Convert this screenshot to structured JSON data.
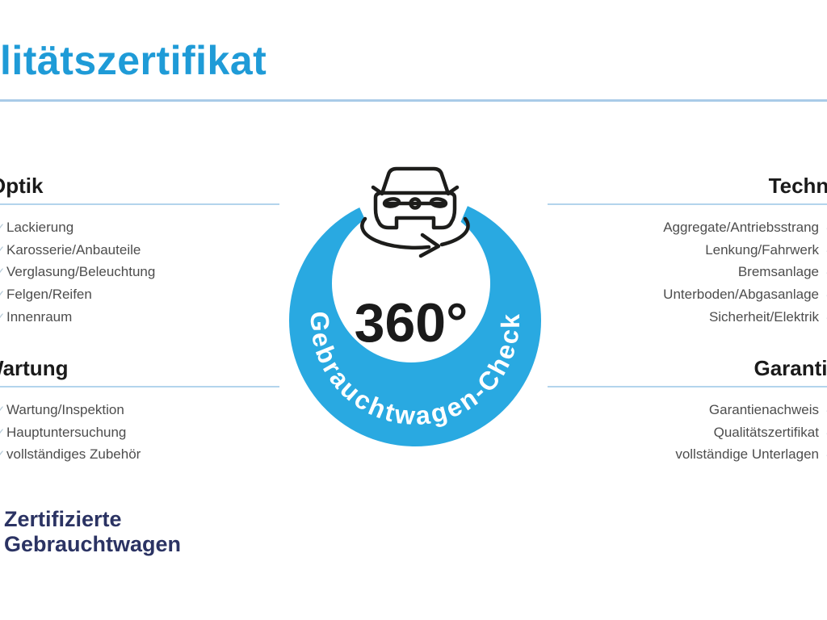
{
  "title": {
    "text": "litätszertifikat"
  },
  "badge": {
    "degrees_label": "360°",
    "ring_label": "Gebrauchtwagen-Check"
  },
  "sections": [
    {
      "heading": "Optik",
      "items": [
        "Lackierung",
        "Karosserie/Anbauteile",
        "Verglasung/Beleuchtung",
        "Felgen/Reifen",
        "Innenraum"
      ]
    },
    {
      "heading": "Technik",
      "items": [
        "Aggregate/Antriebsstrang",
        "Lenkung/Fahrwerk",
        "Bremsanlage",
        "Unterboden/Abgasanlage",
        "Sicherheit/Elektrik"
      ]
    },
    {
      "heading": "Wartung",
      "items": [
        "Wartung/Inspektion",
        "Hauptuntersuchung",
        "vollständiges Zubehör"
      ]
    },
    {
      "heading": "Garantie",
      "items": [
        "Garantienachweis",
        "Qualitätszertifikat",
        "vollständige Unterlagen"
      ]
    }
  ],
  "check_icon": "✓",
  "brand": {
    "line1": "Zertifizierte",
    "line2": "Gebrauchtwagen"
  },
  "colors": {
    "title_blue": "#1f9bd7",
    "ring_blue": "#29a9e1",
    "divider_blue": "#a9cbe8",
    "underline_blue": "#b3d4ec",
    "heading_dark": "#1a1a1a",
    "item_gray": "#4d4d4d",
    "brand_navy": "#2b3363",
    "check_blue": "#b6cbd8",
    "icon_dark": "#1d1d1b"
  }
}
